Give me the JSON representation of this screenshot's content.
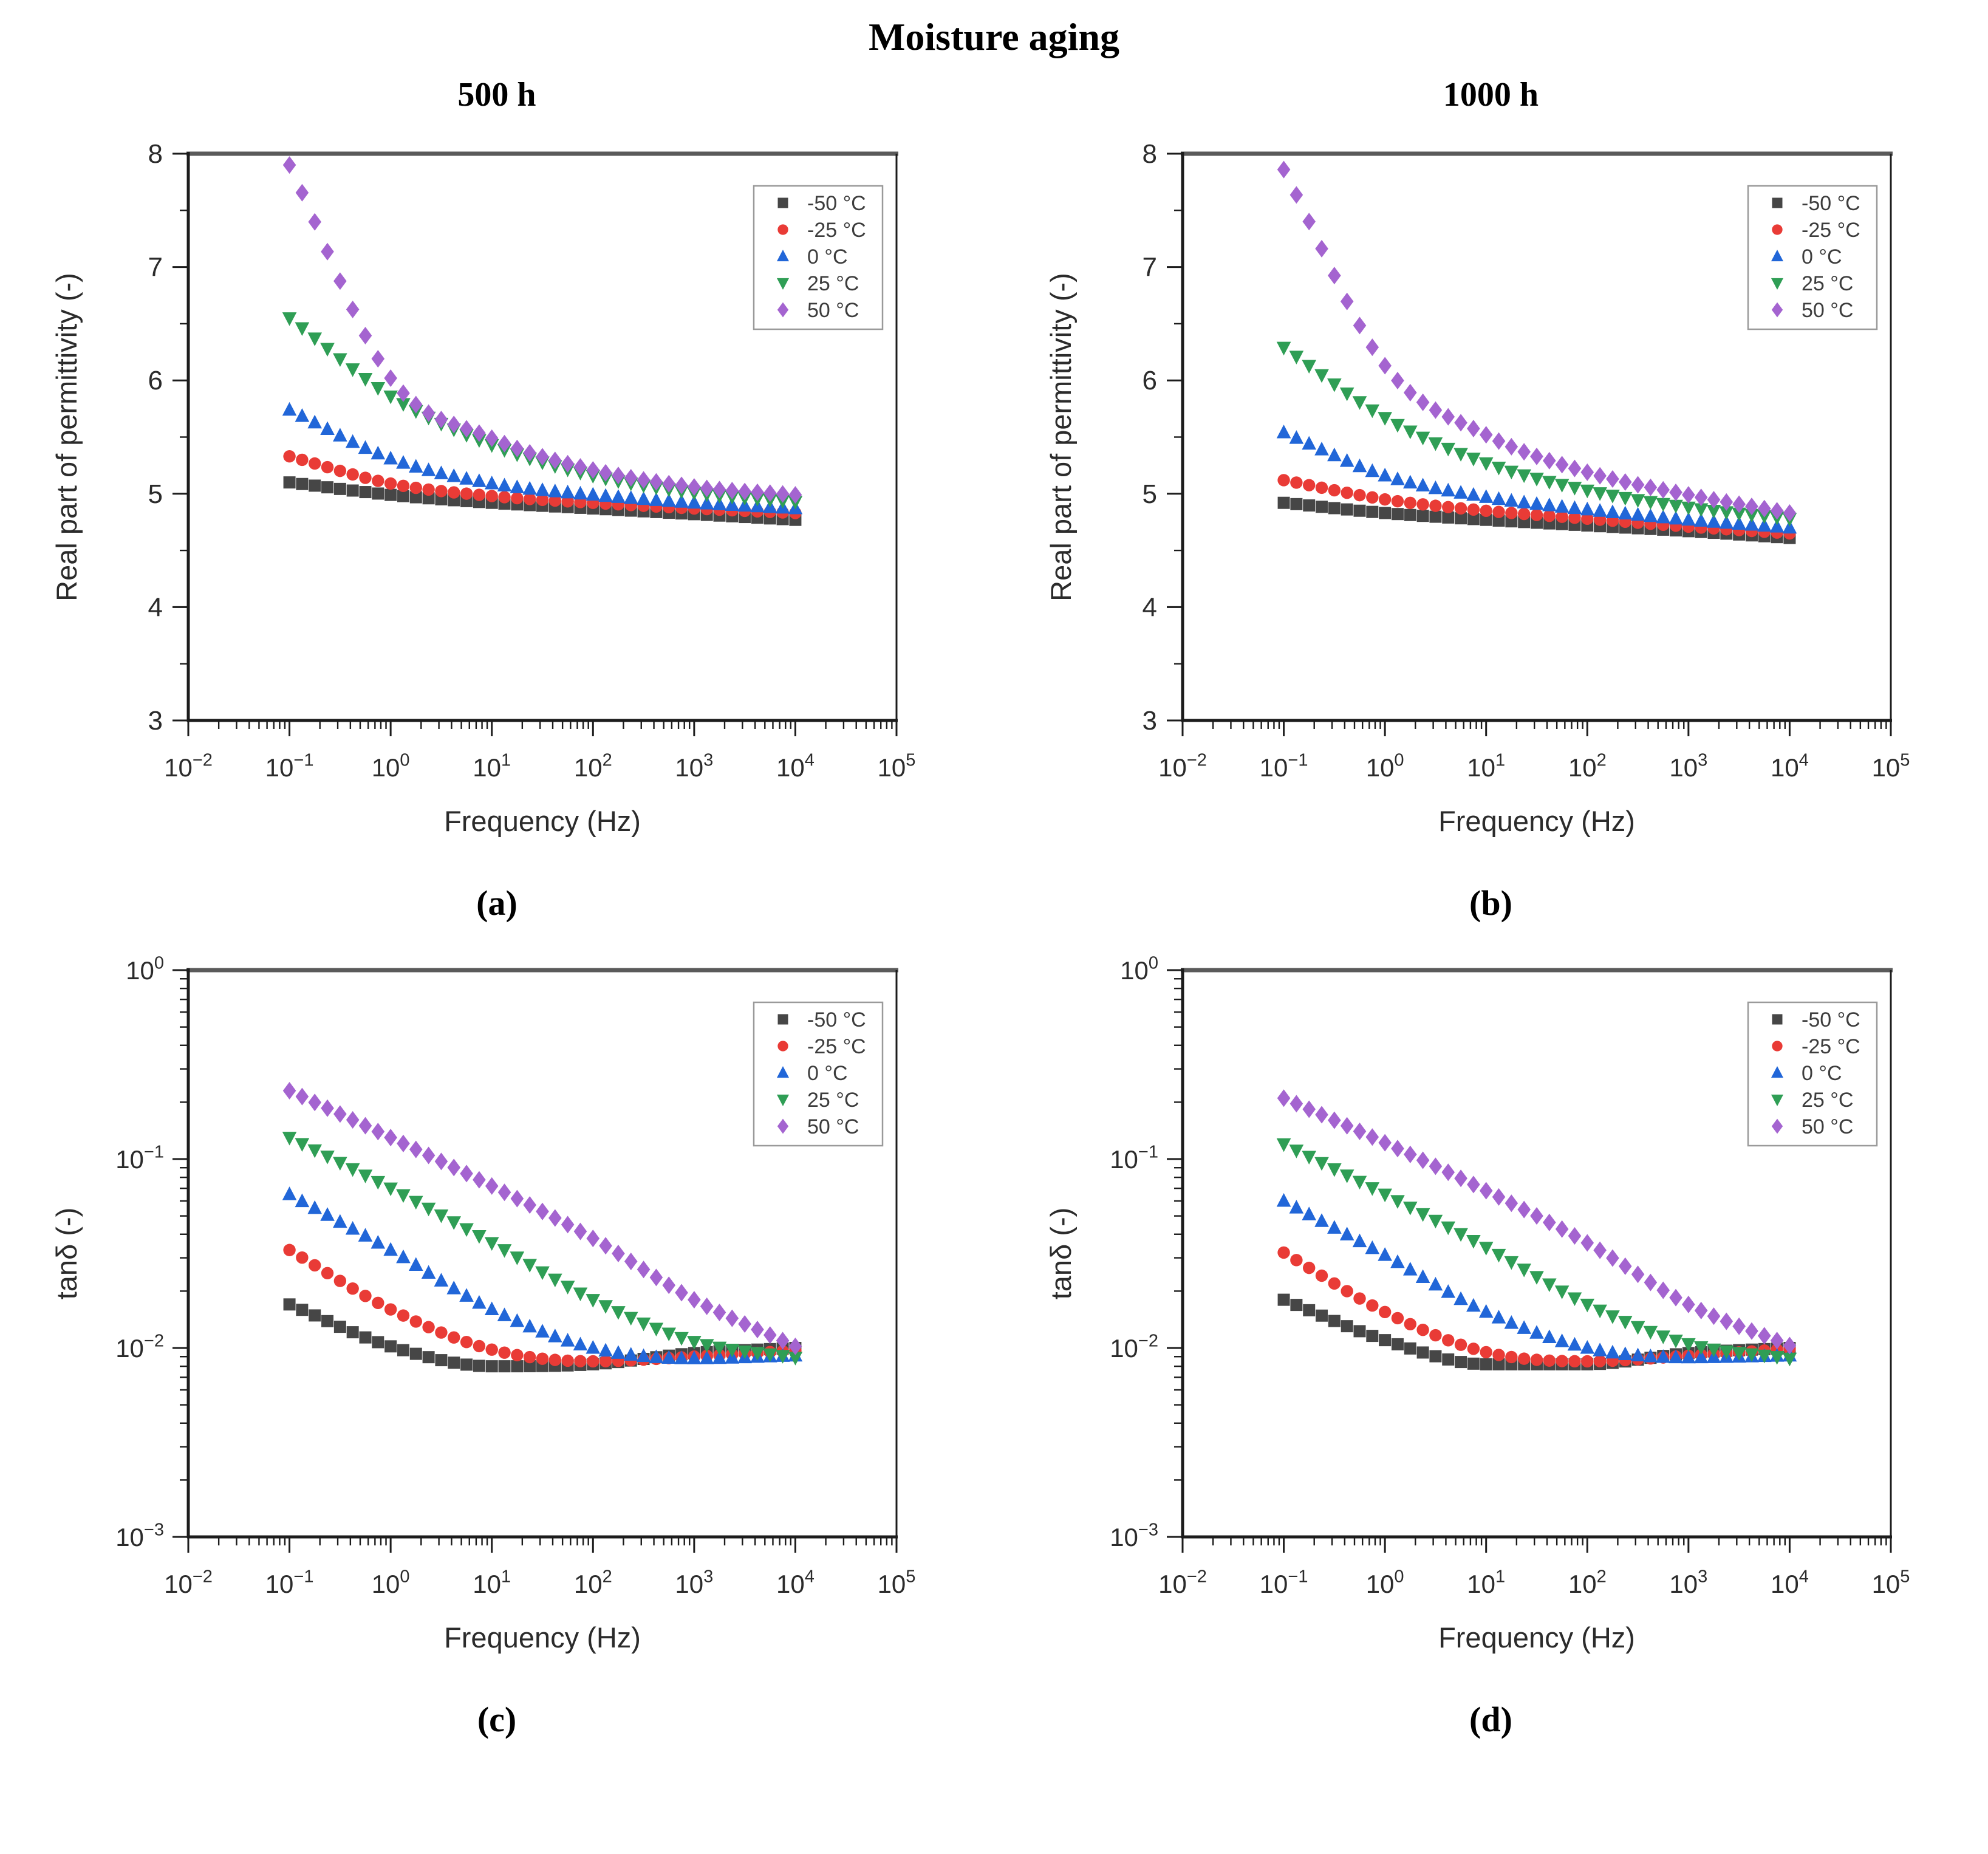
{
  "figure": {
    "title": "Moisture aging",
    "column_headers": [
      "500 h",
      "1000 h"
    ],
    "colors": {
      "axis": "#1c1c1c",
      "top_border": "#5a5a5a",
      "tick_label": "#2b2b2b",
      "legend_border": "#9a9a9a",
      "legend_text": "#3d3d3d"
    }
  },
  "legend": {
    "position": "upper-right-inside",
    "entries": [
      {
        "label": "-50 °C",
        "marker": "square",
        "color": "#464646"
      },
      {
        "label": "-25 °C",
        "marker": "circle",
        "color": "#e93b36"
      },
      {
        "label": "0 °C",
        "marker": "triangle-up",
        "color": "#2166d8"
      },
      {
        "label": "25 °C",
        "marker": "triangle-down",
        "color": "#2f9e55"
      },
      {
        "label": "50 °C",
        "marker": "diamond",
        "color": "#a464d0"
      }
    ]
  },
  "chart_data": [
    {
      "id": "a",
      "panel_label": "(a)",
      "type": "scatter",
      "aging": "500 h",
      "x_axis": {
        "label": "Frequency (Hz)",
        "scale": "log",
        "min": 0.01,
        "max": 100000
      },
      "y_axis": {
        "label": "Real part of permittivity (-)",
        "scale": "linear",
        "min": 3,
        "max": 8,
        "major_step": 1,
        "minor_step": 0.5
      },
      "x_anchors": [
        0.1,
        1,
        10,
        100,
        1000,
        10000
      ],
      "points_per_decade": 8,
      "series": [
        {
          "name": "-50 °C",
          "y": [
            5.1,
            4.99,
            4.92,
            4.87,
            4.82,
            4.77
          ]
        },
        {
          "name": "-25 °C",
          "y": [
            5.33,
            5.09,
            4.98,
            4.92,
            4.87,
            4.83
          ]
        },
        {
          "name": "0 °C",
          "y": [
            5.74,
            5.31,
            5.09,
            4.99,
            4.92,
            4.87
          ]
        },
        {
          "name": "25 °C",
          "y": [
            6.55,
            5.86,
            5.43,
            5.16,
            5.01,
            4.93
          ]
        },
        {
          "name": "50 °C",
          "y": [
            7.9,
            6.02,
            5.49,
            5.21,
            5.06,
            4.99
          ]
        }
      ]
    },
    {
      "id": "b",
      "panel_label": "(b)",
      "type": "scatter",
      "aging": "1000 h",
      "x_axis": {
        "label": "Frequency (Hz)",
        "scale": "log",
        "min": 0.01,
        "max": 100000
      },
      "y_axis": {
        "label": "Real part of permittivity (-)",
        "scale": "linear",
        "min": 3,
        "max": 8,
        "major_step": 1,
        "minor_step": 0.5
      },
      "x_anchors": [
        0.1,
        1,
        10,
        100,
        1000,
        10000
      ],
      "points_per_decade": 8,
      "series": [
        {
          "name": "-50 °C",
          "y": [
            4.92,
            4.83,
            4.77,
            4.72,
            4.67,
            4.61
          ]
        },
        {
          "name": "-25 °C",
          "y": [
            5.12,
            4.95,
            4.85,
            4.78,
            4.71,
            4.65
          ]
        },
        {
          "name": "0 °C",
          "y": [
            5.54,
            5.16,
            4.97,
            4.86,
            4.77,
            4.7
          ]
        },
        {
          "name": "25 °C",
          "y": [
            6.29,
            5.67,
            5.27,
            5.03,
            4.88,
            4.78
          ]
        },
        {
          "name": "50 °C",
          "y": [
            7.86,
            6.13,
            5.52,
            5.19,
            4.99,
            4.83
          ]
        }
      ]
    },
    {
      "id": "c",
      "panel_label": "(c)",
      "type": "scatter",
      "aging": "500 h",
      "x_axis": {
        "label": "Frequency (Hz)",
        "scale": "log",
        "min": 0.01,
        "max": 100000
      },
      "y_axis": {
        "label": "tanδ (-)",
        "scale": "log",
        "min": 0.001,
        "max": 1
      },
      "x_anchors": [
        0.1,
        1,
        10,
        100,
        1000,
        10000
      ],
      "points_per_decade": 8,
      "series": [
        {
          "name": "-50 °C",
          "y": [
            0.017,
            0.0102,
            0.008,
            0.0082,
            0.0094,
            0.01
          ]
        },
        {
          "name": "-25 °C",
          "y": [
            0.033,
            0.016,
            0.0098,
            0.0085,
            0.009,
            0.0097
          ]
        },
        {
          "name": "0 °C",
          "y": [
            0.065,
            0.033,
            0.016,
            0.01,
            0.0088,
            0.0091
          ]
        },
        {
          "name": "25 °C",
          "y": [
            0.13,
            0.07,
            0.036,
            0.018,
            0.0108,
            0.0089
          ]
        },
        {
          "name": "50 °C",
          "y": [
            0.23,
            0.13,
            0.072,
            0.038,
            0.018,
            0.0102
          ]
        }
      ]
    },
    {
      "id": "d",
      "panel_label": "(d)",
      "type": "scatter",
      "aging": "1000 h",
      "x_axis": {
        "label": "Frequency (Hz)",
        "scale": "log",
        "min": 0.01,
        "max": 100000
      },
      "y_axis": {
        "label": "tanδ (-)",
        "scale": "log",
        "min": 0.001,
        "max": 1
      },
      "x_anchors": [
        0.1,
        1,
        10,
        100,
        1000,
        10000
      ],
      "points_per_decade": 8,
      "series": [
        {
          "name": "-50 °C",
          "y": [
            0.018,
            0.011,
            0.0082,
            0.0082,
            0.0094,
            0.01
          ]
        },
        {
          "name": "-25 °C",
          "y": [
            0.032,
            0.0155,
            0.0095,
            0.0085,
            0.0091,
            0.0099
          ]
        },
        {
          "name": "0 °C",
          "y": [
            0.06,
            0.031,
            0.0155,
            0.01,
            0.0089,
            0.0091
          ]
        },
        {
          "name": "25 °C",
          "y": [
            0.12,
            0.065,
            0.034,
            0.017,
            0.0105,
            0.0088
          ]
        },
        {
          "name": "50 °C",
          "y": [
            0.21,
            0.122,
            0.068,
            0.036,
            0.017,
            0.0103
          ]
        }
      ]
    }
  ]
}
